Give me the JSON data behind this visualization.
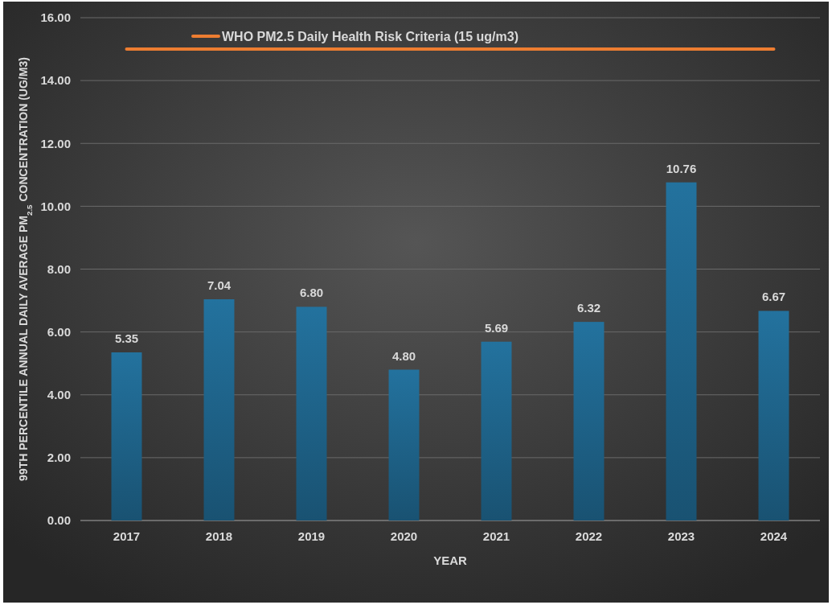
{
  "chart_data": {
    "type": "bar",
    "xlabel": "YEAR",
    "ylabel": "99TH PERCENTILE ANNUAL DAILY AVERAGE PM$_{2.5}$ CONCENTRATION (UG/M3)",
    "categories": [
      "2017",
      "2018",
      "2019",
      "2020",
      "2021",
      "2022",
      "2023",
      "2024"
    ],
    "series": [
      {
        "color": "#1d5f84",
        "values": [
          5.35,
          7.04,
          6.8,
          4.8,
          5.69,
          6.32,
          10.76,
          6.67
        ],
        "value_labels": [
          "5.35",
          "7.04",
          "6.80",
          "4.80",
          "5.69",
          "6.32",
          "10.76",
          "6.67"
        ]
      },
      {
        "type": "line",
        "name": "WHO PM2.5 Daily Health Risk Criteria (15 ug/m3)",
        "color": "#ed7d31",
        "values": [
          15,
          15,
          15,
          15,
          15,
          15,
          15,
          15
        ]
      }
    ],
    "ylim": [
      0,
      16
    ],
    "yticks": [
      {
        "value": 0,
        "label": "0.00"
      },
      {
        "value": 2,
        "label": "2.00"
      },
      {
        "value": 4,
        "label": "4.00"
      },
      {
        "value": 6,
        "label": "6.00"
      },
      {
        "value": 8,
        "label": "8.00"
      },
      {
        "value": 10,
        "label": "10.00"
      },
      {
        "value": 12,
        "label": "12.00"
      },
      {
        "value": 14,
        "label": "14.00"
      },
      {
        "value": 16,
        "label": "16.00"
      }
    ],
    "grid": "y",
    "legend": "top",
    "marker": "none",
    "line_style": "solid"
  }
}
